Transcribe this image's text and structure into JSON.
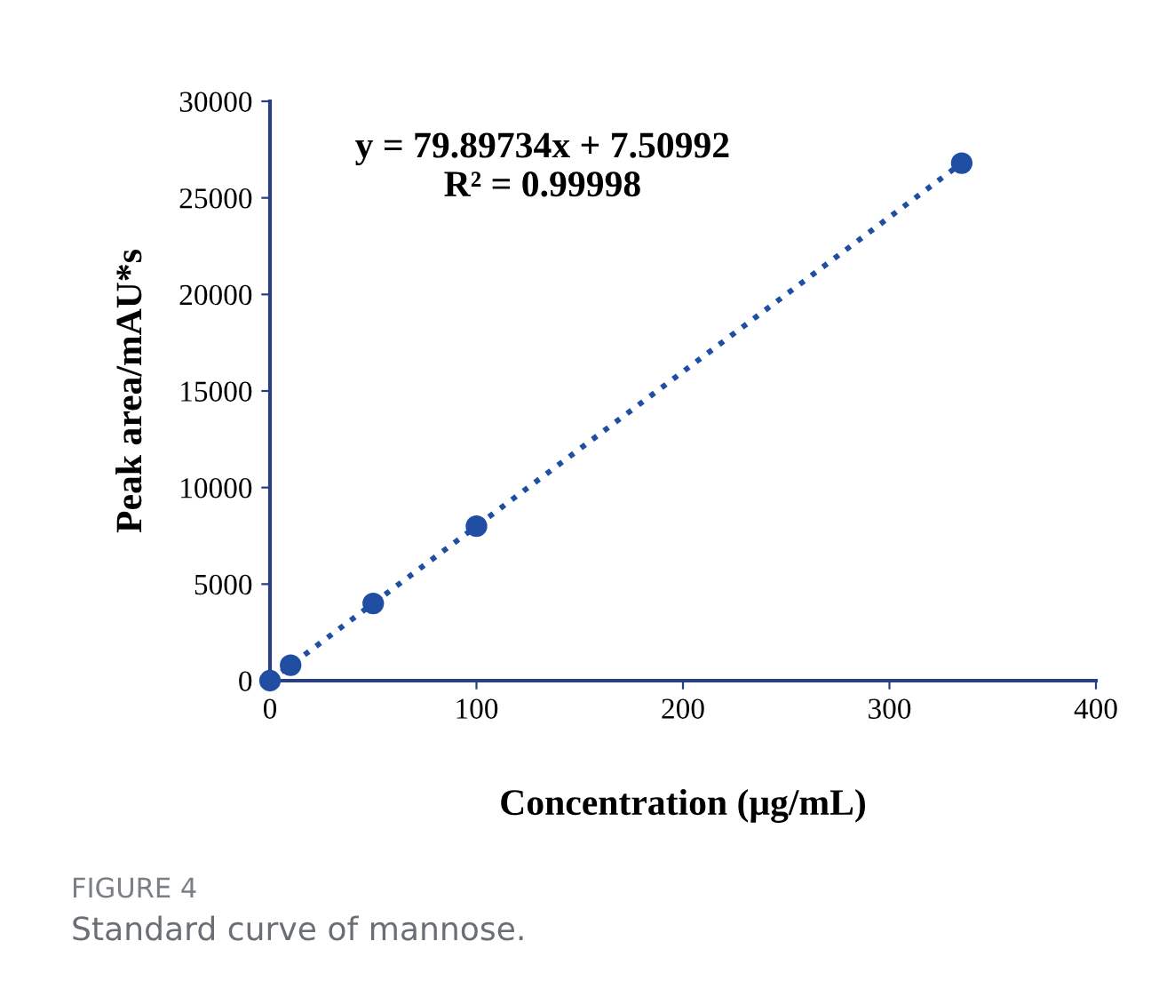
{
  "chart_data": {
    "type": "scatter",
    "xlabel": "Concentration (μg/mL)",
    "ylabel": "Peak area/mAU*s",
    "xlim": [
      0,
      400
    ],
    "xticks": [
      0,
      100,
      200,
      300,
      400
    ],
    "ylim": [
      0,
      30000
    ],
    "yticks": [
      0,
      5000,
      10000,
      15000,
      20000,
      25000,
      30000
    ],
    "grid": false,
    "legend": false,
    "marker": "circle",
    "series": [
      {
        "color": "#1f4ea3",
        "x": [
          0,
          10,
          50,
          100,
          335
        ],
        "values": [
          0,
          800,
          4000,
          8000,
          26800
        ]
      },
      {
        "type": "line",
        "line_style": "dotted",
        "marker": "none",
        "color": "#1f4ea3",
        "x": [
          0,
          335
        ],
        "values": [
          0,
          26800
        ]
      }
    ],
    "annotations": [
      "y = 79.89734x + 7.50992\nR² = 0.99998",
      "FIGURE 4",
      "Standard curve of mannose."
    ]
  }
}
